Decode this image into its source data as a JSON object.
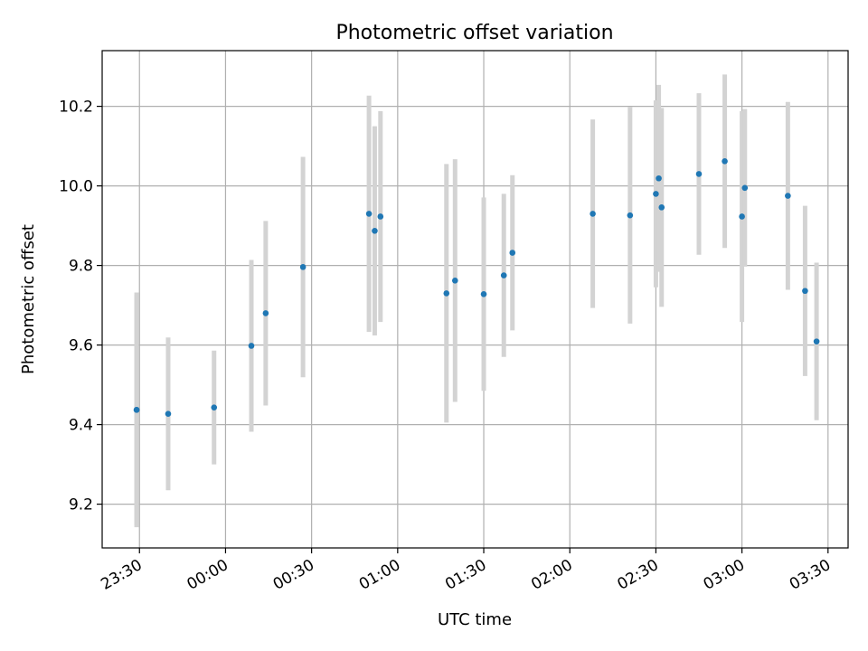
{
  "chart_data": {
    "type": "scatter",
    "title": "Photometric offset variation",
    "xlabel": "UTC time",
    "ylabel": "Photometric offset",
    "x_tick_labels": [
      "23:30",
      "00:00",
      "00:30",
      "01:00",
      "01:30",
      "02:00",
      "02:30",
      "03:00",
      "03:30"
    ],
    "y_tick_labels": [
      "9.2",
      "9.4",
      "9.6",
      "9.8",
      "10.0",
      "10.2"
    ],
    "xlim": [
      "23:17",
      "03:37"
    ],
    "ylim": [
      9.09,
      10.34
    ],
    "grid": true,
    "marker_color": "#1f77b4",
    "errorbar_color": "#d3d3d3",
    "points": [
      {
        "time": "23:29",
        "y": 9.437,
        "yerr": 0.29
      },
      {
        "time": "23:29",
        "y": 9.437,
        "yerr": 0.295
      },
      {
        "time": "23:40",
        "y": 9.427,
        "yerr": 0.192
      },
      {
        "time": "23:56",
        "y": 9.443,
        "yerr": 0.143
      },
      {
        "time": "00:09",
        "y": 9.598,
        "yerr": 0.216
      },
      {
        "time": "00:14",
        "y": 9.68,
        "yerr": 0.232
      },
      {
        "time": "00:27",
        "y": 9.796,
        "yerr": 0.277
      },
      {
        "time": "00:50",
        "y": 9.93,
        "yerr": 0.297
      },
      {
        "time": "00:52",
        "y": 9.887,
        "yerr": 0.263
      },
      {
        "time": "00:54",
        "y": 9.923,
        "yerr": 0.265
      },
      {
        "time": "01:17",
        "y": 9.73,
        "yerr": 0.325
      },
      {
        "time": "01:20",
        "y": 9.762,
        "yerr": 0.305
      },
      {
        "time": "01:30",
        "y": 9.728,
        "yerr": 0.243
      },
      {
        "time": "01:37",
        "y": 9.775,
        "yerr": 0.205
      },
      {
        "time": "01:40",
        "y": 9.832,
        "yerr": 0.195
      },
      {
        "time": "02:08",
        "y": 9.93,
        "yerr": 0.237
      },
      {
        "time": "02:21",
        "y": 9.926,
        "yerr": 0.272
      },
      {
        "time": "02:30",
        "y": 9.98,
        "yerr": 0.235
      },
      {
        "time": "02:31",
        "y": 10.019,
        "yerr": 0.235
      },
      {
        "time": "02:32",
        "y": 9.946,
        "yerr": 0.25
      },
      {
        "time": "02:45",
        "y": 10.03,
        "yerr": 0.203
      },
      {
        "time": "02:54",
        "y": 10.062,
        "yerr": 0.218
      },
      {
        "time": "03:00",
        "y": 9.923,
        "yerr": 0.265
      },
      {
        "time": "03:01",
        "y": 9.995,
        "yerr": 0.198
      },
      {
        "time": "03:16",
        "y": 9.975,
        "yerr": 0.236
      },
      {
        "time": "03:22",
        "y": 9.736,
        "yerr": 0.214
      },
      {
        "time": "03:26",
        "y": 9.609,
        "yerr": 0.198
      }
    ]
  }
}
